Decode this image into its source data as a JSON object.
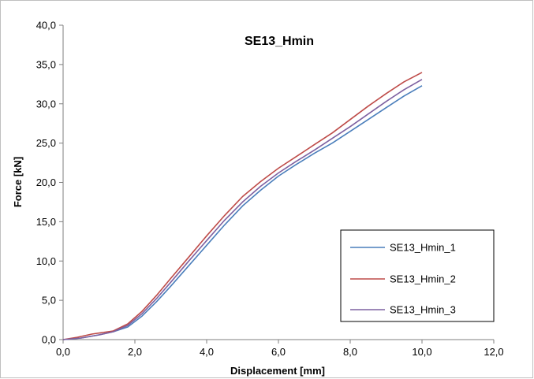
{
  "chart_data": {
    "type": "line",
    "title": "SE13_Hmin",
    "xlabel": "Displacement [mm]",
    "ylabel": "Force [kN]",
    "xlim": [
      0,
      12
    ],
    "ylim": [
      0,
      40
    ],
    "x_ticks": [
      "0,0",
      "2,0",
      "4,0",
      "6,0",
      "8,0",
      "10,0",
      "12,0"
    ],
    "y_ticks": [
      "0,0",
      "5,0",
      "10,0",
      "15,0",
      "20,0",
      "25,0",
      "30,0",
      "35,0",
      "40,0"
    ],
    "grid": false,
    "legend": "bottom-right",
    "series": [
      {
        "name": "SE13_Hmin_1",
        "color": "#4a7ebb",
        "points": [
          [
            0,
            0
          ],
          [
            0.5,
            0.2
          ],
          [
            1.0,
            0.6
          ],
          [
            1.4,
            1.0
          ],
          [
            1.8,
            1.6
          ],
          [
            2.2,
            3.0
          ],
          [
            2.6,
            4.8
          ],
          [
            3.0,
            6.8
          ],
          [
            3.5,
            9.4
          ],
          [
            4.0,
            12.0
          ],
          [
            4.5,
            14.6
          ],
          [
            5.0,
            17.0
          ],
          [
            5.5,
            19.0
          ],
          [
            6.0,
            20.8
          ],
          [
            6.5,
            22.3
          ],
          [
            7.0,
            23.7
          ],
          [
            7.5,
            25.0
          ],
          [
            8.0,
            26.5
          ],
          [
            8.5,
            28.0
          ],
          [
            9.0,
            29.5
          ],
          [
            9.5,
            31.0
          ],
          [
            10.0,
            32.3
          ]
        ]
      },
      {
        "name": "SE13_Hmin_2",
        "color": "#be4b48",
        "points": [
          [
            0,
            0
          ],
          [
            0.4,
            0.3
          ],
          [
            0.8,
            0.7
          ],
          [
            1.1,
            0.9
          ],
          [
            1.4,
            1.1
          ],
          [
            1.8,
            2.0
          ],
          [
            2.2,
            3.6
          ],
          [
            2.6,
            5.6
          ],
          [
            3.0,
            7.8
          ],
          [
            3.5,
            10.5
          ],
          [
            4.0,
            13.2
          ],
          [
            4.5,
            15.8
          ],
          [
            5.0,
            18.2
          ],
          [
            5.5,
            20.1
          ],
          [
            6.0,
            21.8
          ],
          [
            6.5,
            23.3
          ],
          [
            7.0,
            24.8
          ],
          [
            7.5,
            26.3
          ],
          [
            8.0,
            28.0
          ],
          [
            8.5,
            29.7
          ],
          [
            9.0,
            31.3
          ],
          [
            9.5,
            32.8
          ],
          [
            10.0,
            34.0
          ]
        ]
      },
      {
        "name": "SE13_Hmin_3",
        "color": "#7d60a0",
        "points": [
          [
            0,
            0
          ],
          [
            0.5,
            0.2
          ],
          [
            1.0,
            0.6
          ],
          [
            1.4,
            1.0
          ],
          [
            1.8,
            1.8
          ],
          [
            2.2,
            3.3
          ],
          [
            2.6,
            5.2
          ],
          [
            3.0,
            7.3
          ],
          [
            3.5,
            10.0
          ],
          [
            4.0,
            12.6
          ],
          [
            4.5,
            15.2
          ],
          [
            5.0,
            17.5
          ],
          [
            5.5,
            19.5
          ],
          [
            6.0,
            21.2
          ],
          [
            6.5,
            22.7
          ],
          [
            7.0,
            24.1
          ],
          [
            7.5,
            25.6
          ],
          [
            8.0,
            27.1
          ],
          [
            8.5,
            28.7
          ],
          [
            9.0,
            30.3
          ],
          [
            9.5,
            31.8
          ],
          [
            10.0,
            33.1
          ]
        ]
      }
    ]
  }
}
